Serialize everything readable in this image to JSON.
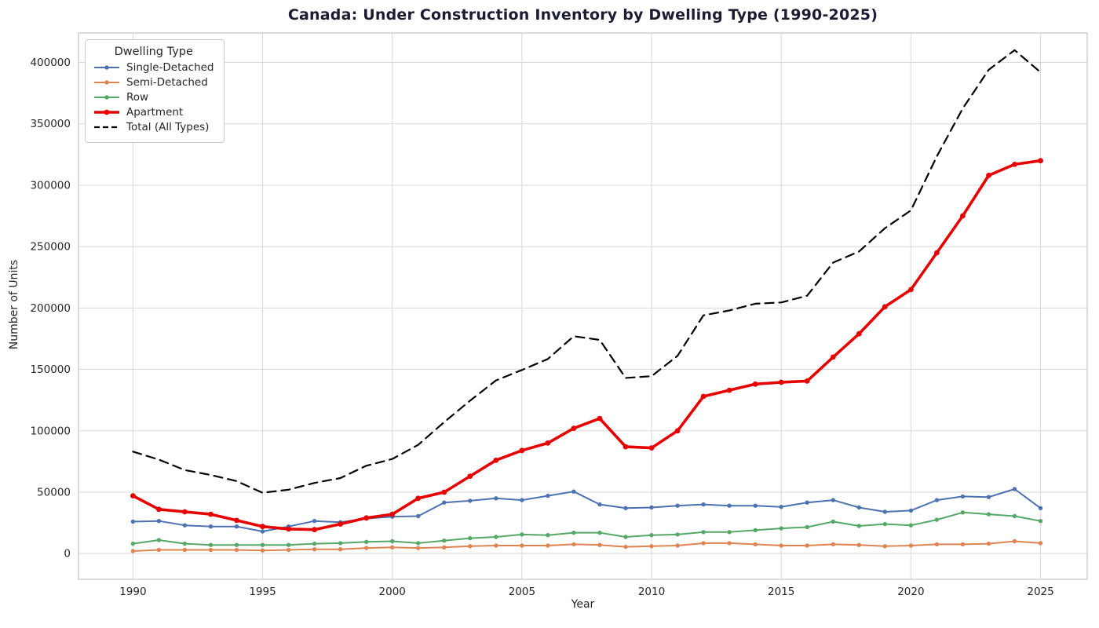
{
  "chart_data": {
    "type": "line",
    "title": "Canada: Under Construction Inventory by Dwelling Type (1990-2025)",
    "xlabel": "Year",
    "ylabel": "Number of Units",
    "legend_title": "Dwelling Type",
    "legend_position": "upper-left",
    "grid": true,
    "x": [
      1990,
      1991,
      1992,
      1993,
      1994,
      1995,
      1996,
      1997,
      1998,
      1999,
      2000,
      2001,
      2002,
      2003,
      2004,
      2005,
      2006,
      2007,
      2008,
      2009,
      2010,
      2011,
      2012,
      2013,
      2014,
      2015,
      2016,
      2017,
      2018,
      2019,
      2020,
      2021,
      2022,
      2023,
      2024,
      2025
    ],
    "x_ticks": [
      1990,
      1995,
      2000,
      2005,
      2010,
      2015,
      2020,
      2025
    ],
    "y_ticks": [
      0,
      50000,
      100000,
      150000,
      200000,
      250000,
      300000,
      350000,
      400000
    ],
    "xlim": [
      1987.9,
      2026.8
    ],
    "ylim": [
      -21000,
      424000
    ],
    "colors": {
      "grid": "#d8d8d8",
      "spine": "#cccccc",
      "tick_text": "#262626",
      "title_text": "#1b1b32"
    },
    "series": [
      {
        "name": "Single-Detached",
        "color": "#4c72b0",
        "style": "solid",
        "marker": true,
        "width": 2,
        "values": [
          26000,
          26500,
          23000,
          22000,
          22000,
          18000,
          22000,
          26500,
          25500,
          28500,
          30000,
          30500,
          41500,
          43000,
          45000,
          43500,
          47000,
          50500,
          40000,
          37000,
          37500,
          39000,
          40000,
          39000,
          39000,
          38000,
          41500,
          43500,
          37500,
          34000,
          35000,
          43500,
          46500,
          46000,
          52500,
          37000
        ]
      },
      {
        "name": "Semi-Detached",
        "color": "#dd8452",
        "style": "solid",
        "marker": true,
        "width": 2,
        "values": [
          2000,
          3000,
          3000,
          3000,
          3000,
          2500,
          3000,
          3500,
          3500,
          4500,
          5000,
          4500,
          5000,
          6000,
          6500,
          6500,
          6500,
          7500,
          7000,
          5500,
          6000,
          6500,
          8500,
          8500,
          7500,
          6500,
          6500,
          7500,
          7000,
          6000,
          6500,
          7500,
          7500,
          8000,
          10000,
          8500
        ]
      },
      {
        "name": "Row",
        "color": "#55a868",
        "style": "solid",
        "marker": true,
        "width": 2,
        "values": [
          8000,
          11000,
          8000,
          7000,
          7000,
          7000,
          7000,
          8000,
          8500,
          9500,
          10000,
          8500,
          10500,
          12500,
          13500,
          15500,
          15000,
          17000,
          17000,
          13500,
          15000,
          15500,
          17500,
          17500,
          19000,
          20500,
          21500,
          26000,
          22500,
          24000,
          23000,
          27500,
          33500,
          32000,
          30500,
          26500
        ]
      },
      {
        "name": "Apartment",
        "color": "#e60000",
        "style": "solid",
        "marker": true,
        "width": 3.6,
        "values": [
          47000,
          36000,
          34000,
          32000,
          27000,
          22000,
          20000,
          19500,
          24000,
          29000,
          32000,
          45000,
          50000,
          63000,
          76000,
          84000,
          90000,
          102000,
          110000,
          87000,
          86000,
          100000,
          128000,
          133000,
          138000,
          139500,
          140500,
          160000,
          179000,
          201000,
          215000,
          245000,
          275000,
          308000,
          317000,
          320000
        ]
      },
      {
        "name": "Total (All Types)",
        "color": "#000000",
        "style": "dashed",
        "marker": false,
        "width": 2.2,
        "values": [
          83000,
          76500,
          68000,
          64000,
          59000,
          49500,
          52000,
          57500,
          61500,
          71500,
          77000,
          88500,
          107000,
          124500,
          141000,
          149500,
          158500,
          177000,
          174000,
          143000,
          144500,
          161000,
          194000,
          198000,
          203500,
          204500,
          210000,
          237000,
          246000,
          265000,
          279500,
          323500,
          362500,
          394000,
          410000,
          392000
        ]
      }
    ]
  }
}
